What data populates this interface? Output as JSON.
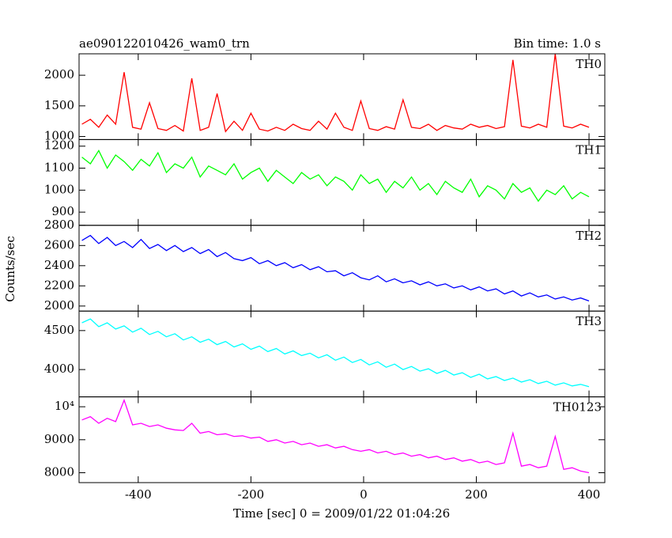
{
  "chart_data": {
    "type": "line",
    "title": "ae090122010426_wam0_trn",
    "subtitle": "Bin time: 1.0 s",
    "xlabel": "Time [sec] 0 = 2009/01/22 01:04:26",
    "ylabel": "Counts/sec",
    "xlim": [
      -505,
      428
    ],
    "xticks": [
      -400,
      -200,
      0,
      200,
      400
    ],
    "x": [
      -500,
      -485,
      -470,
      -455,
      -440,
      -425,
      -410,
      -395,
      -380,
      -365,
      -350,
      -335,
      -320,
      -305,
      -290,
      -275,
      -260,
      -245,
      -230,
      -215,
      -200,
      -185,
      -170,
      -155,
      -140,
      -125,
      -110,
      -95,
      -80,
      -65,
      -50,
      -35,
      -20,
      -5,
      10,
      25,
      40,
      55,
      70,
      85,
      100,
      115,
      130,
      145,
      160,
      175,
      190,
      205,
      220,
      235,
      250,
      265,
      280,
      295,
      310,
      325,
      340,
      355,
      370,
      385,
      400
    ],
    "series": [
      {
        "name": "TH0",
        "color": "#ff0000",
        "ylim": [
          950,
          2350
        ],
        "yticks": [
          1000,
          1500,
          2000
        ],
        "values": [
          1200,
          1280,
          1150,
          1350,
          1200,
          2050,
          1150,
          1120,
          1550,
          1130,
          1100,
          1180,
          1090,
          1950,
          1100,
          1150,
          1700,
          1080,
          1250,
          1100,
          1380,
          1120,
          1090,
          1150,
          1100,
          1200,
          1130,
          1100,
          1250,
          1120,
          1380,
          1150,
          1100,
          1580,
          1130,
          1100,
          1160,
          1120,
          1600,
          1150,
          1130,
          1200,
          1100,
          1180,
          1140,
          1120,
          1200,
          1150,
          1180,
          1130,
          1160,
          2250,
          1170,
          1140,
          1200,
          1150,
          2350,
          1170,
          1140,
          1200,
          1150
        ]
      },
      {
        "name": "TH1",
        "color": "#00ff00",
        "ylim": [
          840,
          1230
        ],
        "yticks": [
          900,
          1000,
          1100,
          1200
        ],
        "values": [
          1150,
          1120,
          1180,
          1100,
          1160,
          1130,
          1090,
          1140,
          1110,
          1170,
          1080,
          1120,
          1100,
          1150,
          1060,
          1110,
          1090,
          1070,
          1120,
          1050,
          1080,
          1100,
          1040,
          1090,
          1060,
          1030,
          1080,
          1050,
          1070,
          1020,
          1060,
          1040,
          1000,
          1070,
          1030,
          1050,
          990,
          1040,
          1010,
          1060,
          1000,
          1030,
          980,
          1040,
          1010,
          990,
          1050,
          970,
          1020,
          1000,
          960,
          1030,
          990,
          1010,
          950,
          1000,
          980,
          1020,
          960,
          990,
          970
        ]
      },
      {
        "name": "TH2",
        "color": "#0000ff",
        "ylim": [
          1950,
          2800
        ],
        "yticks": [
          2000,
          2200,
          2400,
          2600,
          2800
        ],
        "values": [
          2650,
          2700,
          2620,
          2680,
          2600,
          2640,
          2580,
          2660,
          2570,
          2610,
          2550,
          2600,
          2540,
          2580,
          2520,
          2560,
          2490,
          2530,
          2470,
          2450,
          2480,
          2420,
          2450,
          2400,
          2430,
          2380,
          2410,
          2360,
          2390,
          2340,
          2350,
          2300,
          2330,
          2280,
          2260,
          2300,
          2240,
          2270,
          2230,
          2250,
          2210,
          2240,
          2200,
          2220,
          2180,
          2200,
          2160,
          2190,
          2150,
          2170,
          2120,
          2150,
          2100,
          2130,
          2090,
          2110,
          2070,
          2090,
          2060,
          2080,
          2050
        ]
      },
      {
        "name": "TH3",
        "color": "#00ffff",
        "ylim": [
          3650,
          4750
        ],
        "yticks": [
          4000,
          4500
        ],
        "values": [
          4600,
          4650,
          4550,
          4600,
          4520,
          4560,
          4480,
          4530,
          4450,
          4490,
          4420,
          4460,
          4380,
          4420,
          4350,
          4390,
          4320,
          4360,
          4290,
          4330,
          4260,
          4300,
          4230,
          4270,
          4200,
          4240,
          4180,
          4210,
          4150,
          4190,
          4120,
          4160,
          4090,
          4130,
          4060,
          4100,
          4030,
          4070,
          4000,
          4040,
          3980,
          4010,
          3950,
          3990,
          3930,
          3960,
          3900,
          3940,
          3880,
          3910,
          3860,
          3890,
          3840,
          3870,
          3820,
          3850,
          3800,
          3830,
          3790,
          3810,
          3780
        ]
      },
      {
        "name": "TH0123",
        "color": "#ff00ff",
        "ylim": [
          7700,
          10300
        ],
        "yticks": [
          8000,
          9000,
          {
            "value": 10000,
            "label": "10⁴"
          }
        ],
        "values": [
          9600,
          9700,
          9500,
          9650,
          9550,
          10200,
          9450,
          9500,
          9400,
          9450,
          9350,
          9300,
          9280,
          9500,
          9200,
          9250,
          9150,
          9180,
          9100,
          9120,
          9050,
          9080,
          8950,
          9000,
          8900,
          8950,
          8850,
          8900,
          8800,
          8850,
          8750,
          8800,
          8700,
          8650,
          8700,
          8600,
          8650,
          8550,
          8600,
          8500,
          8550,
          8450,
          8500,
          8400,
          8450,
          8350,
          8400,
          8300,
          8350,
          8250,
          8300,
          9200,
          8200,
          8250,
          8150,
          8200,
          9100,
          8100,
          8150,
          8050,
          8000
        ]
      }
    ]
  }
}
